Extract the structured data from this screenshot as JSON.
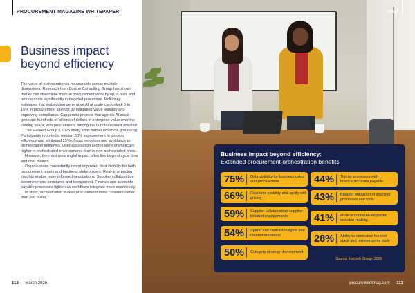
{
  "left_page": {
    "header": "PROCUREMENT MAGAZINE WHITEPAPER",
    "headline_line1": "Business impact",
    "headline_line2": "beyond efficiency",
    "paragraphs": [
      "The value of orchestration is measurable across multiple dimensions. Research from Boston Consulting Group has shown that AI can streamline manual procurement work by up to 30% and reduce costs significantly in targeted processes. McKinsey estimates that embedding generative AI at scale can unlock 5 to 15% in procurement savings by mitigating value leakage and improving compliance. Capgemini projects that agentic AI could generate hundreds of billions of dollars in enterprise value over the coming years, with procurement among the f unctions most affected.",
      "The Hackett Group's 2026 study adds further empirical grounding. Participants reported a median 30% improvement in process efficiency and attributed 25% of cost reduction and avoidance to orchestration initiatives. User satisfaction scores were dramatically higher in orchestrated environments than in non-orchestrated ones.",
      "However, the most meaningful impact often lies beyond cycle time and cost metrics.",
      "Organisations consistently report improved data visibility for both procurement teams and business stakeholders. Real-time pricing insights enable more informed negotiations. Supplier collaboration becomes more structured and transparent. Finance and accounts payable processes tighten as workflows integrate more seamlessly.",
      "In short, orchestration makes procurement more coherent rather than just faster."
    ],
    "folio_number": "112",
    "folio_date": "March 2026"
  },
  "right_page": {
    "tag": "ORO",
    "folio_site": "procurementmag.com",
    "folio_number": "113"
  },
  "infographic": {
    "title": "Business impact beyond efficiency:",
    "subtitle": "Extended procurement orchestration benefits",
    "stats": [
      {
        "pct": "75%",
        "label": "Data visibility for business users and procurement"
      },
      {
        "pct": "66%",
        "label": "Real-time visibility and agility with pricing"
      },
      {
        "pct": "59%",
        "label": "Supplier collaboration/ supplier-initiated engagements"
      },
      {
        "pct": "54%",
        "label": "Spend and contract insights and recommendations"
      },
      {
        "pct": "50%",
        "label": "Category strategy development"
      },
      {
        "pct": "44%",
        "label": "Tighter processes with finance/accounts payable"
      },
      {
        "pct": "43%",
        "label": "Broader utilisation of sourcing processes and tools"
      },
      {
        "pct": "41%",
        "label": "More accurate AI-supported decision-making"
      },
      {
        "pct": "28%",
        "label": "Ability to rationalise the tech stack and remove some tools"
      }
    ],
    "source": "Source: Hackett Group, 2026",
    "colors": {
      "panel": "#15214a",
      "accent": "#f6b419"
    }
  }
}
